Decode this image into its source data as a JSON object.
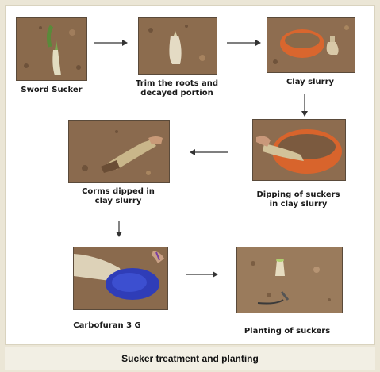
{
  "steps": {
    "sword_sucker": "Sword Sucker",
    "trim_roots_line1": "Trim the roots and",
    "trim_roots_line2": "decayed portion",
    "clay_slurry": "Clay slurry",
    "dipping_line1": "Dipping of suckers",
    "dipping_line2": "in clay slurry",
    "corms_line1": "Corms dipped in",
    "corms_line2": "clay slurry",
    "carbofuran": "Carbofuran 3 G",
    "planting": "Planting of suckers"
  },
  "caption": "Sucker treatment and planting"
}
